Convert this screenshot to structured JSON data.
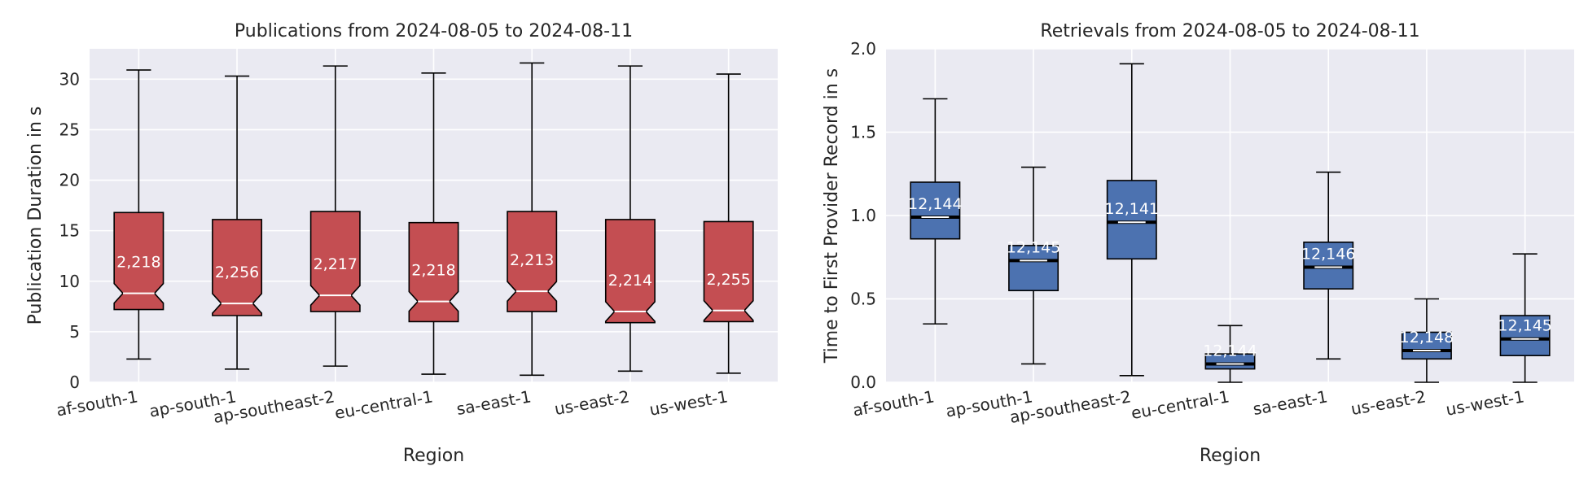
{
  "chart_data": [
    {
      "type": "box",
      "title": "Publications from 2024-08-05 to 2024-08-11",
      "xlabel": "Region",
      "ylabel": "Publication Duration in s",
      "ylim": [
        0,
        33
      ],
      "yticks": [
        0,
        5,
        10,
        15,
        20,
        25,
        30
      ],
      "grid": true,
      "notched": true,
      "color": "#c44e52",
      "categories": [
        "af-south-1",
        "ap-south-1",
        "ap-southeast-2",
        "eu-central-1",
        "sa-east-1",
        "us-east-2",
        "us-west-1"
      ],
      "counts": [
        "2,218",
        "2,256",
        "2,217",
        "2,218",
        "2,213",
        "2,214",
        "2,255"
      ],
      "boxes": [
        {
          "whislo": 2.3,
          "q1": 7.2,
          "med": 8.8,
          "q3": 16.8,
          "whishi": 30.9
        },
        {
          "whislo": 1.3,
          "q1": 6.6,
          "med": 7.8,
          "q3": 16.1,
          "whishi": 30.3
        },
        {
          "whislo": 1.6,
          "q1": 7.0,
          "med": 8.6,
          "q3": 16.9,
          "whishi": 31.3
        },
        {
          "whislo": 0.8,
          "q1": 6.0,
          "med": 8.0,
          "q3": 15.8,
          "whishi": 30.6
        },
        {
          "whislo": 0.7,
          "q1": 7.0,
          "med": 9.0,
          "q3": 16.9,
          "whishi": 31.6
        },
        {
          "whislo": 1.1,
          "q1": 5.9,
          "med": 7.0,
          "q3": 16.1,
          "whishi": 31.3
        },
        {
          "whislo": 0.9,
          "q1": 6.0,
          "med": 7.1,
          "q3": 15.9,
          "whishi": 30.5
        }
      ]
    },
    {
      "type": "box",
      "title": "Retrievals from 2024-08-05 to 2024-08-11",
      "xlabel": "Region",
      "ylabel": "Time to First Provider Record in s",
      "ylim": [
        0,
        2.0
      ],
      "yticks": [
        0.0,
        0.5,
        1.0,
        1.5,
        2.0
      ],
      "yticklabels": [
        "0.0",
        "0.5",
        "1.0",
        "1.5",
        "2.0"
      ],
      "grid": true,
      "notched": false,
      "color": "#4c72b0",
      "categories": [
        "af-south-1",
        "ap-south-1",
        "ap-southeast-2",
        "eu-central-1",
        "sa-east-1",
        "us-east-2",
        "us-west-1"
      ],
      "counts": [
        "12,144",
        "12,145",
        "12,141",
        "12,144",
        "12,146",
        "12,148",
        "12,145"
      ],
      "boxes": [
        {
          "whislo": 0.35,
          "q1": 0.86,
          "med": 0.99,
          "q3": 1.2,
          "whishi": 1.7
        },
        {
          "whislo": 0.11,
          "q1": 0.55,
          "med": 0.73,
          "q3": 0.82,
          "whishi": 1.29
        },
        {
          "whislo": 0.04,
          "q1": 0.74,
          "med": 0.96,
          "q3": 1.21,
          "whishi": 1.91
        },
        {
          "whislo": 0.0,
          "q1": 0.08,
          "med": 0.11,
          "q3": 0.17,
          "whishi": 0.34
        },
        {
          "whislo": 0.14,
          "q1": 0.56,
          "med": 0.69,
          "q3": 0.84,
          "whishi": 1.26
        },
        {
          "whislo": 0.0,
          "q1": 0.14,
          "med": 0.19,
          "q3": 0.3,
          "whishi": 0.5
        },
        {
          "whislo": 0.0,
          "q1": 0.16,
          "med": 0.26,
          "q3": 0.4,
          "whishi": 0.77
        }
      ]
    }
  ]
}
